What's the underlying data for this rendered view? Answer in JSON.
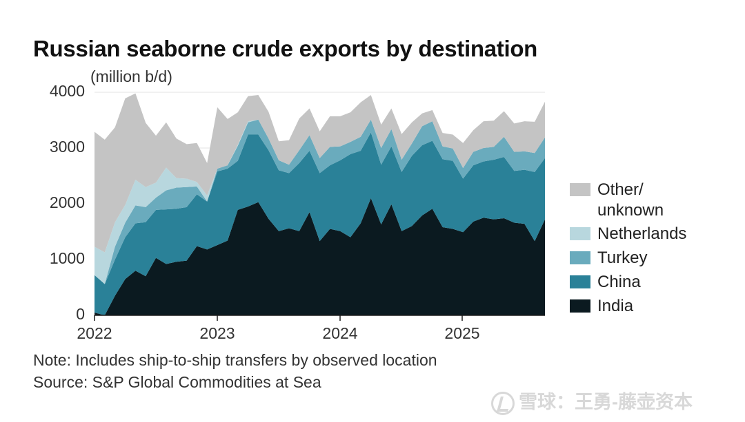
{
  "title": "Russian seaborne crude exports by destination",
  "unit_label": "(million b/d)",
  "note": "Note: Includes ship-to-ship transfers by observed location",
  "source": "Source: S&P Global Commodities at Sea",
  "watermark": "雪球：王勇-藤壶资本",
  "colors": {
    "India": "#0b1a20",
    "China": "#2a8198",
    "Turkey": "#6aabbd",
    "Netherlands": "#b8d7de",
    "Other/unknown": "#c4c4c4"
  },
  "chart_data": {
    "type": "area",
    "stacked": true,
    "x_ticks": [
      "2022",
      "2023",
      "2024",
      "2025"
    ],
    "x_start": "2022-01",
    "x_end": "2025-09",
    "y_ticks": [
      "0",
      "1000",
      "2000",
      "3000",
      "4000"
    ],
    "ylim": [
      0,
      4000
    ],
    "legend_position": "right",
    "grid": true,
    "series": [
      {
        "name": "India",
        "values": [
          50,
          0,
          350,
          650,
          800,
          700,
          1030,
          920,
          960,
          980,
          1240,
          1180,
          1260,
          1340,
          1890,
          1950,
          2030,
          1730,
          1510,
          1560,
          1510,
          1850,
          1330,
          1550,
          1510,
          1400,
          1650,
          2100,
          1630,
          1990,
          1510,
          1600,
          1790,
          1910,
          1580,
          1550,
          1490,
          1680,
          1750,
          1720,
          1740,
          1660,
          1640,
          1330,
          1720
        ]
      },
      {
        "name": "China",
        "values": [
          670,
          560,
          650,
          750,
          850,
          970,
          860,
          980,
          950,
          960,
          930,
          860,
          1320,
          1290,
          880,
          1290,
          1210,
          1230,
          1090,
          990,
          1220,
          1100,
          1220,
          1140,
          1270,
          1490,
          1300,
          1180,
          1070,
          1040,
          1060,
          1260,
          1260,
          1220,
          1220,
          1220,
          960,
          1010,
          1010,
          1070,
          1100,
          930,
          970,
          1240,
          1100
        ]
      },
      {
        "name": "Turkey",
        "values": [
          0,
          0,
          230,
          260,
          320,
          270,
          220,
          340,
          380,
          360,
          140,
          0,
          50,
          60,
          270,
          220,
          270,
          210,
          180,
          150,
          230,
          280,
          270,
          330,
          250,
          220,
          250,
          230,
          300,
          310,
          220,
          220,
          340,
          350,
          230,
          220,
          190,
          240,
          240,
          230,
          360,
          340,
          330,
          340,
          370
        ]
      },
      {
        "name": "Netherlands",
        "values": [
          510,
          570,
          440,
          320,
          460,
          360,
          270,
          410,
          170,
          150,
          80,
          110,
          0,
          0,
          20,
          20,
          0,
          0,
          0,
          0,
          0,
          0,
          0,
          0,
          0,
          0,
          0,
          0,
          0,
          0,
          0,
          0,
          0,
          0,
          0,
          0,
          0,
          0,
          0,
          0,
          0,
          0,
          0,
          0,
          0
        ]
      },
      {
        "name": "Other/unknown",
        "values": [
          2060,
          2020,
          1700,
          1910,
          1550,
          1150,
          840,
          810,
          710,
          620,
          700,
          580,
          1100,
          830,
          580,
          450,
          440,
          480,
          340,
          440,
          570,
          480,
          480,
          550,
          540,
          530,
          620,
          440,
          420,
          370,
          460,
          380,
          230,
          200,
          240,
          250,
          450,
          390,
          480,
          470,
          460,
          510,
          540,
          560,
          640
        ]
      }
    ]
  },
  "legend": {
    "items": [
      {
        "label": "Other/",
        "label2": "unknown",
        "key": "Other/unknown"
      },
      {
        "label": "Netherlands",
        "key": "Netherlands"
      },
      {
        "label": "Turkey",
        "key": "Turkey"
      },
      {
        "label": "China",
        "key": "China"
      },
      {
        "label": "India",
        "key": "India"
      }
    ]
  }
}
